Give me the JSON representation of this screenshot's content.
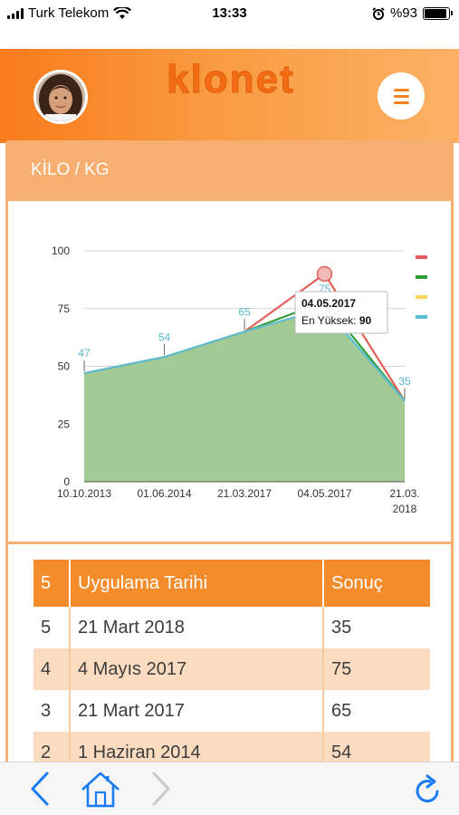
{
  "status_bar": {
    "carrier": "Turk Telekom",
    "time": "13:33",
    "battery": "%93",
    "battery_level": 0.93
  },
  "header": {
    "logo_text": "klonet",
    "avatar_icon": "user-avatar",
    "menu_icon": "hamburger-icon",
    "brand_color": "#f58220"
  },
  "card": {
    "title": "KİLO / KG"
  },
  "chart_data": {
    "type": "area",
    "x": [
      "10.10.2013",
      "01.06.2014",
      "21.03.2017",
      "04.05.2017",
      "21.03.2018"
    ],
    "x_tick_labels": [
      "10.10.2013",
      "01.06.2014",
      "21.03.2017",
      "04.05.2017",
      "21.03.\n2018"
    ],
    "ylim": [
      0,
      100
    ],
    "yticks": [
      0,
      25,
      50,
      75,
      100
    ],
    "grid": true,
    "legend_placement": "right",
    "series": [
      {
        "color": "#e3605a",
        "values": [
          47,
          54,
          65,
          90,
          35
        ]
      },
      {
        "color": "#2e9e38",
        "values": [
          47,
          54,
          65,
          78,
          35
        ]
      },
      {
        "color": "#f5d65a",
        "values": [
          47,
          54,
          65,
          75,
          35
        ]
      },
      {
        "color": "#5bbcd6",
        "values": [
          47,
          54,
          65,
          75,
          35
        ]
      }
    ],
    "area_color": "#9cc78e",
    "data_labels": [
      "47",
      "54",
      "65",
      "75",
      "35"
    ],
    "tooltip": {
      "date": "04.05.2017",
      "label": "En Yüksek:",
      "value": "90"
    }
  },
  "table": {
    "headers": [
      "5",
      "Uygulama Tarihi",
      "Sonuç"
    ],
    "rows": [
      [
        "5",
        "21 Mart 2018",
        "35"
      ],
      [
        "4",
        "4 Mayıs 2017",
        "75"
      ],
      [
        "3",
        "21 Mart 2017",
        "65"
      ],
      [
        "2",
        "1 Haziran 2014",
        "54"
      ]
    ]
  },
  "toolbar": {
    "back_icon": "chevron-left-icon",
    "home_icon": "home-icon",
    "forward_icon": "chevron-right-icon",
    "reload_icon": "reload-icon",
    "accent_color": "#1a7cf5"
  }
}
